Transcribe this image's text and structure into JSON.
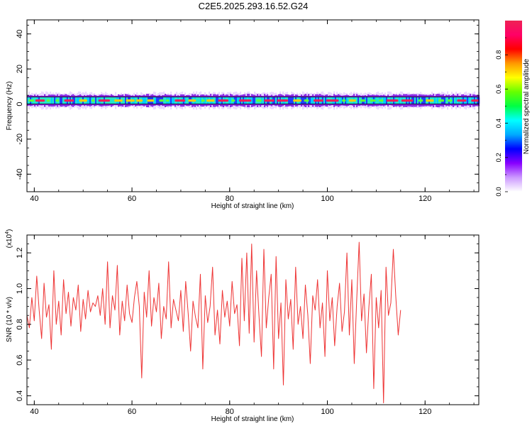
{
  "title": "C2E5.2025.293.16.52.G24",
  "chart_data": [
    {
      "type": "heatmap",
      "xlabel": "Height of straight line (km)",
      "ylabel": "Frequency (Hz)",
      "xlim": [
        38.5,
        131
      ],
      "ylim": [
        -50,
        48
      ],
      "xticks": [
        40,
        60,
        80,
        100,
        120
      ],
      "xtick_labels": [
        "40",
        "60",
        "80",
        "100",
        "120"
      ],
      "yticks": [
        40,
        20,
        0,
        -20,
        -40
      ],
      "ytick_labels": [
        "40",
        "20",
        "0",
        "-20",
        "-40"
      ],
      "band_center_hz": 2,
      "band_half_width_hz": 2,
      "band_edge_lines_hz": [
        0,
        4
      ],
      "colorbar": {
        "label": "Normalized spectral amplitude",
        "range": [
          0,
          1
        ],
        "ticks": [
          0,
          0.2,
          0.4,
          0.6,
          0.8
        ],
        "tick_labels": [
          "0.0",
          "0.2",
          "0.4",
          "0.6",
          "0.8"
        ],
        "colors": [
          "#ffffff",
          "#cc99ff",
          "#8800ff",
          "#0000ff",
          "#00aaff",
          "#00ffff",
          "#00ff44",
          "#66ff00",
          "#ffff00",
          "#ff9900",
          "#ff0000",
          "#ff0066",
          "#ee2255"
        ]
      }
    },
    {
      "type": "line",
      "xlabel": "Height of straight line (km)",
      "ylabel": "SNR (10 * v/v)",
      "scale_label": "(x10",
      "scale_exp": "4",
      "scale_close": ")",
      "xlim": [
        38.5,
        131
      ],
      "ylim": [
        0.35,
        1.3
      ],
      "xticks": [
        40,
        60,
        80,
        100,
        120
      ],
      "xtick_labels": [
        "40",
        "60",
        "80",
        "100",
        "120"
      ],
      "yticks": [
        0.4,
        0.6,
        0.8,
        1.0,
        1.2
      ],
      "ytick_labels": [
        "0.4",
        "0.6",
        "0.8",
        "1.0",
        "1.2"
      ],
      "series": [
        {
          "color": "#ee3333",
          "x_start": 38.5,
          "x_step": 0.5,
          "values": [
            0.85,
            0.78,
            0.95,
            0.82,
            1.07,
            0.88,
            0.72,
            1.03,
            0.84,
            0.91,
            0.66,
            1.1,
            0.8,
            0.93,
            0.74,
            1.05,
            0.86,
            0.98,
            0.79,
            0.95,
            0.88,
            1.02,
            0.76,
            0.94,
            0.83,
            0.99,
            0.87,
            0.92,
            0.9,
            0.96,
            0.85,
            1.0,
            0.8,
            1.15,
            0.78,
            0.96,
            0.88,
            1.13,
            0.74,
            0.93,
            0.82,
            1.02,
            0.86,
            0.81,
            0.95,
            1.04,
            0.9,
            0.5,
            0.98,
            0.84,
            1.1,
            0.79,
            0.95,
            0.87,
            1.03,
            0.72,
            0.9,
            0.83,
            1.15,
            0.78,
            0.94,
            0.88,
            0.82,
            0.99,
            0.76,
            1.04,
            0.86,
            0.65,
            0.93,
            0.84,
            0.78,
            1.08,
            0.55,
            0.96,
            0.81,
            0.9,
            1.12,
            0.74,
            0.88,
            0.69,
            0.99,
            0.84,
            0.93,
            0.79,
            1.04,
            0.86,
            0.91,
            0.68,
            1.17,
            0.82,
            1.2,
            0.75,
            1.25,
            0.7,
            1.1,
            0.85,
            0.62,
            1.22,
            0.78,
            0.95,
            1.08,
            0.55,
            1.18,
            0.72,
            0.92,
            0.46,
            1.05,
            0.83,
            0.94,
            0.66,
            1.12,
            0.8,
            0.9,
            0.72,
            1.02,
            0.85,
            0.58,
            0.96,
            0.88,
            1.05,
            0.78,
            0.92,
            0.62,
            1.1,
            0.82,
            0.95,
            0.68,
            0.9,
            1.03,
            0.76,
            0.87,
            1.2,
            0.74,
            1.05,
            0.58,
            0.93,
            1.26,
            0.82,
            0.97,
            0.64,
            0.9,
            1.08,
            0.44,
            0.95,
            0.78,
            0.99,
            0.36,
            1.12,
            0.85,
            0.92,
            1.22,
            0.96,
            0.74,
            0.88
          ]
        }
      ]
    }
  ]
}
